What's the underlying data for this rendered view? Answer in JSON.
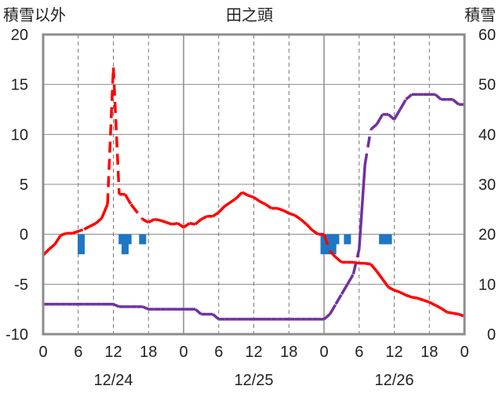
{
  "chart_data": {
    "type": "line",
    "title": "田之頭",
    "ylabel_left": "積雪以外",
    "ylabel_right": "積雪",
    "ylim_left": [
      -10,
      20
    ],
    "ylim_right": [
      0,
      60
    ],
    "yticks_left": [
      "20",
      "15",
      "10",
      "5",
      "0",
      "-5",
      "-10"
    ],
    "yticks_right": [
      "60",
      "50",
      "40",
      "30",
      "20",
      "10",
      "0"
    ],
    "x_range_hours": [
      0,
      72
    ],
    "xtick_labels": [
      "0",
      "6",
      "12",
      "18",
      "0",
      "6",
      "12",
      "18",
      "0",
      "6",
      "12",
      "18",
      "0"
    ],
    "date_labels": [
      "12/24",
      "12/25",
      "12/26"
    ],
    "grid": "vertical at 6h, solid at day boundaries",
    "series": [
      {
        "style": "red line (solid where hourly, dashed interpolated)",
        "color": "#ff0000",
        "points": [
          [
            0,
            -2.1
          ],
          [
            1,
            -1.5
          ],
          [
            2,
            -1.0
          ],
          [
            3,
            -0.1
          ],
          [
            4,
            0.1
          ],
          [
            5,
            0.1
          ],
          [
            7,
            0.5
          ],
          [
            8,
            0.8
          ],
          [
            9,
            1.1
          ],
          [
            10,
            1.6
          ],
          [
            11,
            3.0
          ],
          [
            12,
            16.7
          ],
          [
            13,
            4.0
          ],
          [
            14,
            4.0
          ],
          [
            15,
            3.0
          ],
          [
            17,
            1.5
          ],
          [
            18,
            1.2
          ],
          [
            19,
            1.5
          ],
          [
            20,
            1.4
          ],
          [
            21,
            1.2
          ],
          [
            22,
            1.0
          ],
          [
            23,
            1.1
          ],
          [
            24,
            0.7
          ],
          [
            25,
            1.1
          ],
          [
            26,
            1.0
          ],
          [
            27,
            1.5
          ],
          [
            28,
            1.8
          ],
          [
            29,
            1.8
          ],
          [
            30,
            2.2
          ],
          [
            31,
            2.8
          ],
          [
            32,
            3.2
          ],
          [
            33,
            3.6
          ],
          [
            34,
            4.2
          ],
          [
            35,
            3.9
          ],
          [
            36,
            3.7
          ],
          [
            37,
            3.3
          ],
          [
            38,
            3.0
          ],
          [
            39,
            2.6
          ],
          [
            40,
            2.6
          ],
          [
            41,
            2.4
          ],
          [
            42,
            2.1
          ],
          [
            43,
            1.9
          ],
          [
            44,
            1.5
          ],
          [
            45,
            1.0
          ],
          [
            46,
            0.4
          ],
          [
            47,
            0.0
          ],
          [
            48,
            0.0
          ],
          [
            49,
            -1.7
          ],
          [
            50,
            -2.3
          ],
          [
            51,
            -2.8
          ],
          [
            52,
            -2.8
          ],
          [
            53,
            -2.8
          ],
          [
            54,
            -2.9
          ],
          [
            55,
            -2.9
          ],
          [
            56,
            -3.0
          ],
          [
            57,
            -3.7
          ],
          [
            58,
            -4.5
          ],
          [
            59,
            -5.3
          ],
          [
            60,
            -5.6
          ],
          [
            61,
            -5.8
          ],
          [
            62,
            -6.1
          ],
          [
            63,
            -6.3
          ],
          [
            64,
            -6.4
          ],
          [
            65,
            -6.6
          ],
          [
            66,
            -6.8
          ],
          [
            67,
            -7.1
          ],
          [
            68,
            -7.4
          ],
          [
            69,
            -7.8
          ],
          [
            70,
            -7.9
          ],
          [
            71,
            -8.0
          ],
          [
            72,
            -8.2
          ]
        ]
      },
      {
        "style": "purple line on right axis (snow depth)",
        "color": "#7030a0",
        "points": [
          [
            0,
            6
          ],
          [
            1,
            6
          ],
          [
            2,
            6
          ],
          [
            3,
            6
          ],
          [
            4,
            6
          ],
          [
            5,
            6
          ],
          [
            6,
            6
          ],
          [
            7,
            6
          ],
          [
            8,
            6
          ],
          [
            9,
            6
          ],
          [
            10,
            6
          ],
          [
            11,
            6
          ],
          [
            12,
            6
          ],
          [
            13,
            5.5
          ],
          [
            14,
            5.5
          ],
          [
            15,
            5.5
          ],
          [
            16,
            5.5
          ],
          [
            17,
            5.5
          ],
          [
            18,
            5
          ],
          [
            19,
            5
          ],
          [
            20,
            5
          ],
          [
            21,
            5
          ],
          [
            22,
            5
          ],
          [
            23,
            5
          ],
          [
            24,
            5
          ],
          [
            25,
            5
          ],
          [
            26,
            5
          ],
          [
            27,
            4
          ],
          [
            28,
            4
          ],
          [
            29,
            4
          ],
          [
            30,
            3
          ],
          [
            31,
            3
          ],
          [
            32,
            3
          ],
          [
            33,
            3
          ],
          [
            34,
            3
          ],
          [
            35,
            3
          ],
          [
            36,
            3
          ],
          [
            37,
            3
          ],
          [
            38,
            3
          ],
          [
            39,
            3
          ],
          [
            40,
            3
          ],
          [
            41,
            3
          ],
          [
            42,
            3
          ],
          [
            43,
            3
          ],
          [
            44,
            3
          ],
          [
            45,
            3
          ],
          [
            46,
            3
          ],
          [
            47,
            3
          ],
          [
            48,
            3
          ],
          [
            49,
            4
          ],
          [
            50,
            6
          ],
          [
            51,
            8
          ],
          [
            52,
            10
          ],
          [
            53,
            12
          ],
          [
            54,
            17
          ],
          [
            55,
            34
          ],
          [
            56,
            41
          ],
          [
            57,
            42
          ],
          [
            58,
            44
          ],
          [
            59,
            44
          ],
          [
            60,
            43
          ],
          [
            61,
            45
          ],
          [
            62,
            47
          ],
          [
            63,
            48
          ],
          [
            64,
            48
          ],
          [
            65,
            48
          ],
          [
            66,
            48
          ],
          [
            67,
            48
          ],
          [
            68,
            47
          ],
          [
            69,
            47
          ],
          [
            70,
            47
          ],
          [
            71,
            46
          ],
          [
            72,
            46
          ]
        ]
      },
      {
        "style": "blue bars below zero",
        "color": "#1f77c4",
        "points": [
          [
            6.5,
            -2
          ],
          [
            13.5,
            -1
          ],
          [
            14,
            -2
          ],
          [
            14.5,
            -1
          ],
          [
            17,
            -1
          ],
          [
            48,
            -2
          ],
          [
            49,
            -2
          ],
          [
            49.5,
            -2
          ],
          [
            50,
            -1
          ],
          [
            52,
            -1
          ],
          [
            58,
            -1
          ],
          [
            59,
            -1
          ]
        ]
      }
    ]
  }
}
